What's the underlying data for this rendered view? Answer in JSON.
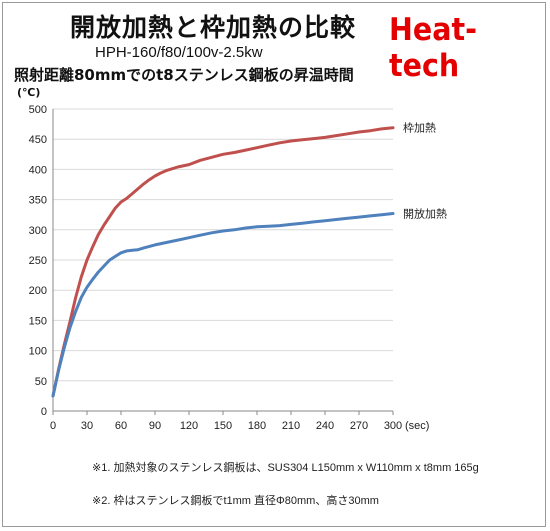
{
  "title": "開放加熱と枠加熱の比較",
  "brand": "Heat-tech",
  "subtitle": "HPH-160/f80/100v-2.5kw",
  "subtitle2": "照射距離80mmでのt8ステンレス鋼板の昇温時間",
  "notes": [
    "※1. 加熱対象のステンレス鋼板は、SUS304  L150mm x W110mm x t8mm  165g",
    "※2. 枠はステンレス鋼板でt1mm  直径Φ80mm、高さ30mm"
  ],
  "colors": {
    "series_1": "#c0504d",
    "series_2": "#4f81bd",
    "brand": "#e40000",
    "grid": "#d9d9d9"
  },
  "chart_data": {
    "type": "line",
    "title": "",
    "xlabel": "(sec)",
    "ylabel": "(℃)",
    "xlim": [
      0,
      300
    ],
    "ylim": [
      0,
      500
    ],
    "x_ticks": [
      0,
      30,
      60,
      90,
      120,
      150,
      180,
      210,
      240,
      270,
      300
    ],
    "y_ticks": [
      0,
      50,
      100,
      150,
      200,
      250,
      300,
      350,
      400,
      450,
      500
    ],
    "grid": "horizontal",
    "series": [
      {
        "name": "枠加熱",
        "x": [
          0,
          5,
          10,
          15,
          20,
          25,
          30,
          35,
          40,
          45,
          50,
          55,
          60,
          65,
          70,
          75,
          80,
          85,
          90,
          95,
          100,
          105,
          110,
          120,
          130,
          140,
          150,
          160,
          170,
          180,
          190,
          200,
          210,
          220,
          230,
          240,
          250,
          260,
          270,
          280,
          290,
          300
        ],
        "y": [
          25,
          70,
          110,
          148,
          188,
          222,
          250,
          272,
          292,
          308,
          322,
          336,
          346,
          352,
          360,
          368,
          376,
          383,
          389,
          394,
          398,
          401,
          404,
          408,
          415,
          420,
          425,
          428,
          432,
          436,
          440,
          444,
          447,
          449,
          451,
          453,
          456,
          459,
          462,
          464,
          467,
          469
        ]
      },
      {
        "name": "開放加熱",
        "x": [
          0,
          5,
          10,
          15,
          20,
          25,
          30,
          35,
          40,
          45,
          50,
          55,
          60,
          65,
          70,
          75,
          80,
          90,
          100,
          110,
          120,
          130,
          140,
          150,
          160,
          170,
          180,
          190,
          200,
          210,
          220,
          230,
          240,
          250,
          260,
          270,
          280,
          290,
          300
        ],
        "y": [
          25,
          68,
          105,
          138,
          165,
          188,
          205,
          218,
          230,
          240,
          250,
          256,
          262,
          265,
          266,
          267,
          270,
          275,
          279,
          283,
          287,
          291,
          295,
          298,
          300,
          303,
          305,
          306,
          307,
          309,
          311,
          313,
          315,
          317,
          319,
          321,
          323,
          325,
          327
        ]
      }
    ]
  }
}
